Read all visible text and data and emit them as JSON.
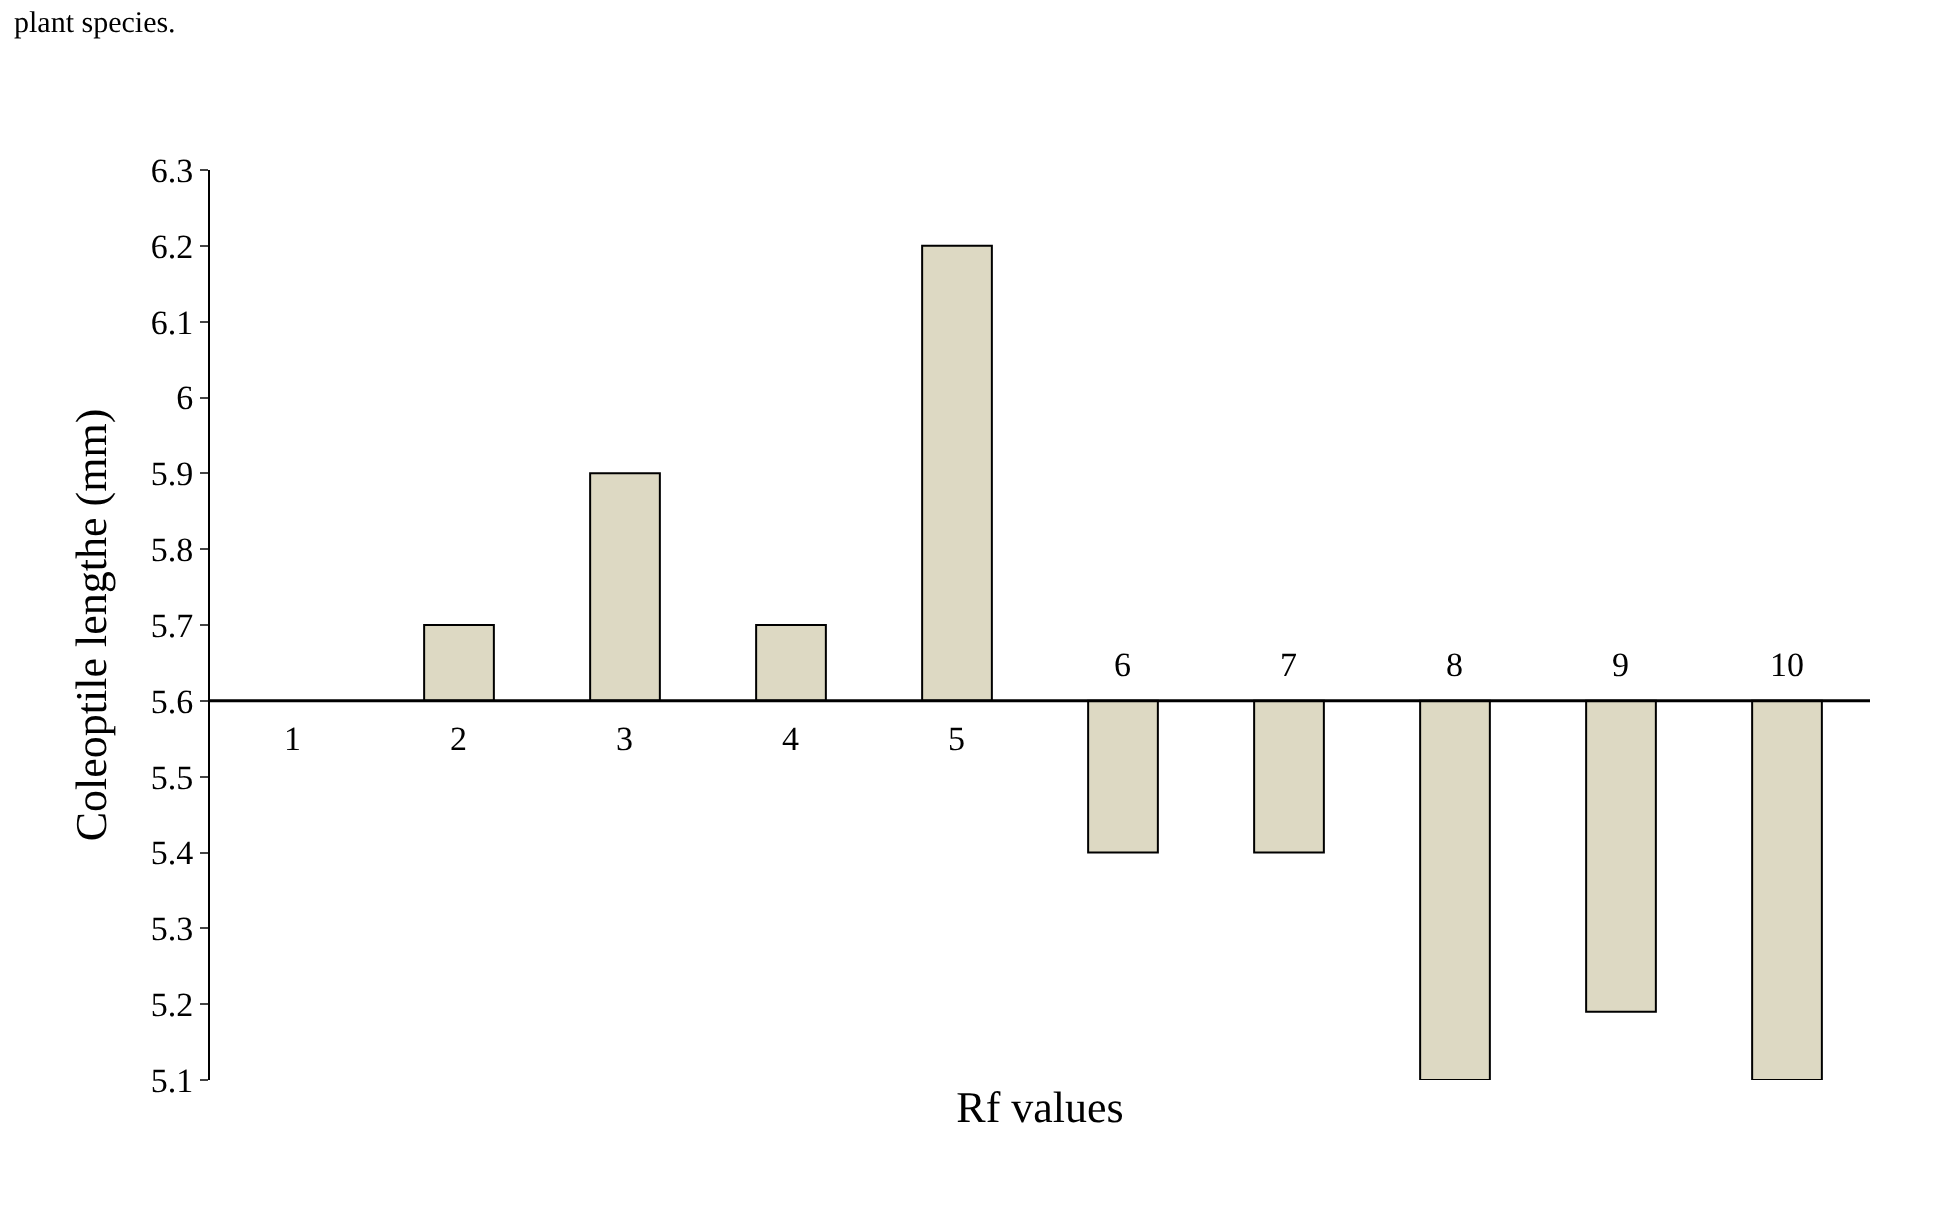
{
  "chart_data": {
    "type": "bar",
    "annotations": [
      "plant species."
    ],
    "xlabel": "Rf values",
    "ylabel": "Coleoptile lengthe (mm)",
    "categories": [
      "1",
      "2",
      "3",
      "4",
      "5",
      "6",
      "7",
      "8",
      "9",
      "10"
    ],
    "base": [
      null,
      5.6,
      5.6,
      5.6,
      5.6,
      5.6,
      5.6,
      5.6,
      5.6,
      5.6
    ],
    "values": [
      null,
      0.1,
      0.3,
      0.1,
      0.6,
      -0.2,
      -0.2,
      -0.5,
      -0.41,
      -0.5
    ],
    "color": "#ddd9c3",
    "ylim": [
      5.1,
      6.3
    ],
    "yticks": [
      5.1,
      5.2,
      5.3,
      5.4,
      5.5,
      5.6,
      5.7,
      5.8,
      5.9,
      6,
      6.1,
      6.2,
      6.3
    ],
    "legend": false
  }
}
